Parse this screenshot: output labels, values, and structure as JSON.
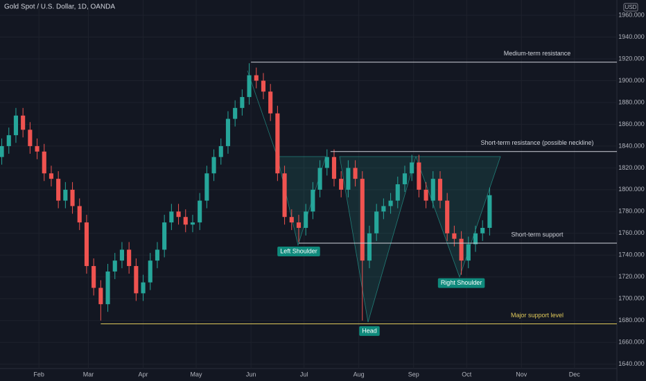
{
  "chart_data": {
    "type": "candlestick",
    "title": "Gold Spot / U.S. Dollar, 1D, OANDA",
    "currency": "USD",
    "up_color": "#26a69a",
    "down_color": "#ef5350",
    "x": [
      10,
      14,
      18,
      22,
      26,
      30,
      34,
      38,
      42,
      46,
      50,
      54,
      58,
      62,
      66,
      70,
      74,
      78,
      82,
      86,
      90,
      94,
      98,
      102,
      106,
      110,
      114,
      118,
      122,
      126,
      130,
      134,
      138,
      142,
      146,
      150,
      154,
      158,
      162,
      166,
      170,
      174,
      178,
      182,
      186,
      190,
      194,
      198,
      202,
      206,
      210,
      214,
      218,
      222,
      226,
      230,
      234,
      238,
      242,
      246,
      250,
      254,
      258,
      262,
      266,
      270,
      274,
      278,
      282,
      286
    ],
    "open": [
      1830,
      1840,
      1850,
      1868,
      1855,
      1840,
      1835,
      1815,
      1810,
      1790,
      1800,
      1785,
      1770,
      1730,
      1710,
      1695,
      1725,
      1735,
      1745,
      1730,
      1705,
      1715,
      1735,
      1745,
      1770,
      1780,
      1775,
      1768,
      1770,
      1790,
      1815,
      1830,
      1840,
      1865,
      1875,
      1885,
      1905,
      1900,
      1890,
      1870,
      1815,
      1775,
      1770,
      1765,
      1780,
      1800,
      1820,
      1830,
      1810,
      1800,
      1820,
      1810,
      1735,
      1760,
      1780,
      1785,
      1790,
      1805,
      1815,
      1825,
      1800,
      1790,
      1810,
      1790,
      1760,
      1755,
      1735,
      1750,
      1760,
      1765
    ],
    "high": [
      1847,
      1857,
      1875,
      1875,
      1862,
      1847,
      1842,
      1822,
      1817,
      1807,
      1807,
      1792,
      1777,
      1737,
      1717,
      1732,
      1742,
      1752,
      1752,
      1737,
      1722,
      1742,
      1752,
      1777,
      1787,
      1787,
      1782,
      1777,
      1797,
      1822,
      1837,
      1847,
      1872,
      1882,
      1892,
      1916,
      1912,
      1907,
      1897,
      1877,
      1822,
      1782,
      1777,
      1787,
      1807,
      1827,
      1837,
      1837,
      1817,
      1827,
      1827,
      1817,
      1767,
      1787,
      1792,
      1797,
      1812,
      1822,
      1832,
      1832,
      1807,
      1817,
      1817,
      1797,
      1767,
      1762,
      1757,
      1767,
      1772,
      1802
    ],
    "low": [
      1823,
      1833,
      1843,
      1848,
      1833,
      1828,
      1808,
      1803,
      1783,
      1783,
      1778,
      1763,
      1723,
      1703,
      1680,
      1688,
      1718,
      1728,
      1723,
      1698,
      1698,
      1708,
      1728,
      1738,
      1763,
      1768,
      1761,
      1761,
      1763,
      1783,
      1808,
      1823,
      1833,
      1858,
      1868,
      1878,
      1893,
      1883,
      1863,
      1808,
      1768,
      1763,
      1752,
      1758,
      1773,
      1793,
      1813,
      1803,
      1793,
      1793,
      1803,
      1680,
      1728,
      1753,
      1773,
      1778,
      1783,
      1798,
      1808,
      1793,
      1783,
      1783,
      1783,
      1753,
      1748,
      1722,
      1728,
      1743,
      1753,
      1758
    ],
    "close": [
      1840,
      1850,
      1868,
      1855,
      1840,
      1835,
      1815,
      1810,
      1790,
      1800,
      1785,
      1770,
      1730,
      1710,
      1695,
      1725,
      1735,
      1745,
      1730,
      1705,
      1715,
      1735,
      1745,
      1770,
      1780,
      1775,
      1768,
      1770,
      1790,
      1815,
      1830,
      1840,
      1865,
      1875,
      1885,
      1905,
      1900,
      1890,
      1870,
      1815,
      1775,
      1770,
      1765,
      1780,
      1800,
      1820,
      1830,
      1810,
      1800,
      1820,
      1810,
      1735,
      1760,
      1780,
      1785,
      1790,
      1805,
      1815,
      1825,
      1800,
      1790,
      1810,
      1790,
      1760,
      1755,
      1735,
      1750,
      1760,
      1765,
      1795
    ],
    "xlim": [
      9,
      358
    ],
    "xticks": [
      {
        "value": 31,
        "label": "Feb"
      },
      {
        "value": 59,
        "label": "Mar"
      },
      {
        "value": 90,
        "label": "Apr"
      },
      {
        "value": 120,
        "label": "May"
      },
      {
        "value": 151,
        "label": "Jun"
      },
      {
        "value": 181,
        "label": "Jul"
      },
      {
        "value": 212,
        "label": "Aug"
      },
      {
        "value": 243,
        "label": "Sep"
      },
      {
        "value": 273,
        "label": "Oct"
      },
      {
        "value": 304,
        "label": "Nov"
      },
      {
        "value": 334,
        "label": "Dec"
      }
    ],
    "ylim": [
      1636,
      1974
    ],
    "yticks": [
      {
        "value": 1640,
        "label": "1640.000"
      },
      {
        "value": 1660,
        "label": "1660.000"
      },
      {
        "value": 1680,
        "label": "1680.000"
      },
      {
        "value": 1700,
        "label": "1700.000"
      },
      {
        "value": 1720,
        "label": "1720.000"
      },
      {
        "value": 1740,
        "label": "1740.000"
      },
      {
        "value": 1760,
        "label": "1760.000"
      },
      {
        "value": 1780,
        "label": "1780.000"
      },
      {
        "value": 1800,
        "label": "1800.000"
      },
      {
        "value": 1820,
        "label": "1820.000"
      },
      {
        "value": 1840,
        "label": "1840.000"
      },
      {
        "value": 1860,
        "label": "1860.000"
      },
      {
        "value": 1880,
        "label": "1880.000"
      },
      {
        "value": 1900,
        "label": "1900.000"
      },
      {
        "value": 1920,
        "label": "1920.000"
      },
      {
        "value": 1940,
        "label": "1940.000"
      },
      {
        "value": 1960,
        "label": "1960.000"
      }
    ],
    "levels": [
      {
        "label": "Medium-term resistance",
        "value": 1917,
        "from": 151,
        "color": "#d1d4dc"
      },
      {
        "label": "Short-term resistance (possible neckline)",
        "value": 1835,
        "from": 196,
        "color": "#d1d4dc"
      },
      {
        "label": "Short-term support",
        "value": 1751,
        "from": 178,
        "color": "#d1d4dc"
      },
      {
        "label": "Major support level",
        "value": 1677,
        "from": 66,
        "color": "#e0c95a"
      }
    ],
    "pattern_labels": [
      {
        "label": "Left Shoulder",
        "x": 178,
        "value": 1751
      },
      {
        "label": "Head",
        "x": 218,
        "value": 1678
      },
      {
        "label": "Right Shoulder",
        "x": 270,
        "value": 1722
      }
    ]
  }
}
